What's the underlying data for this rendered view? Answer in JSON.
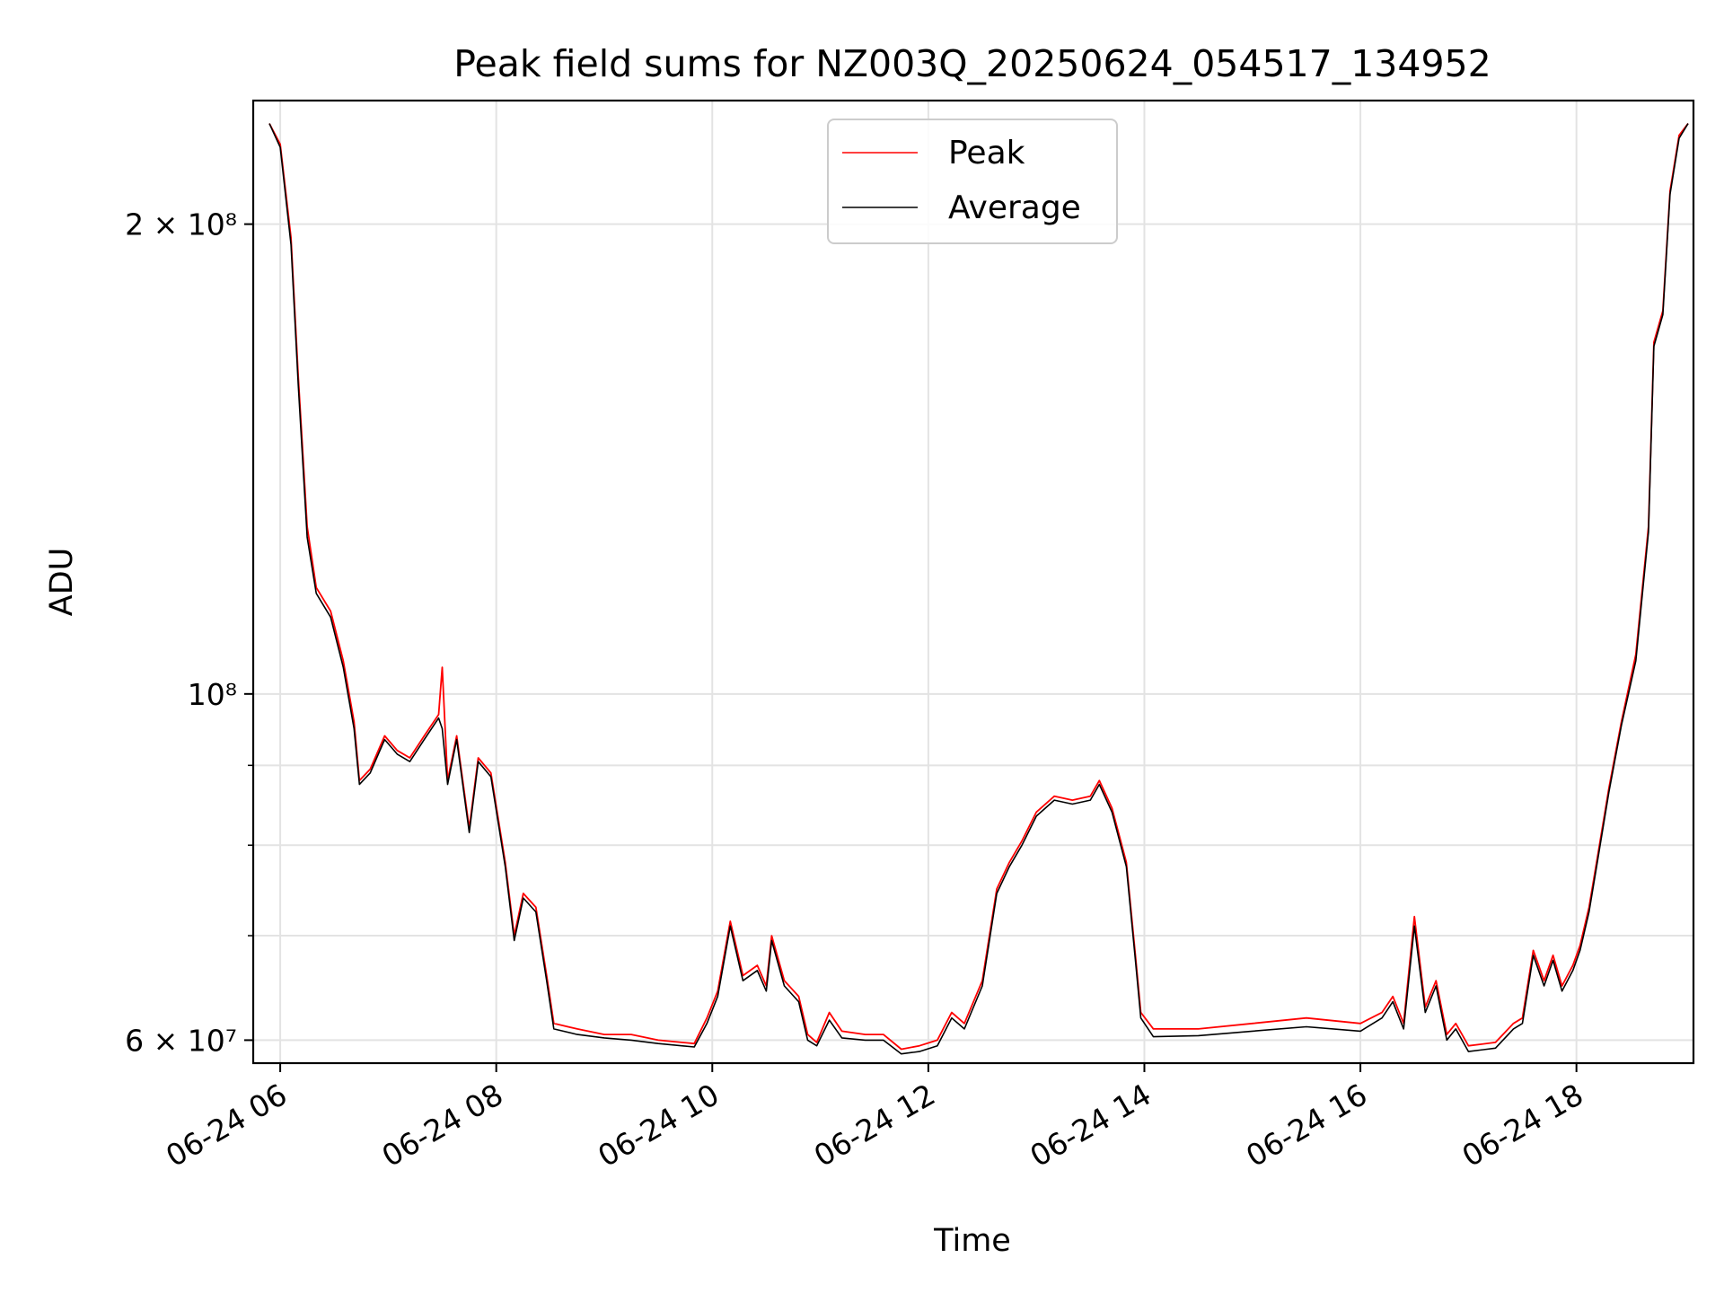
{
  "chart_data": {
    "type": "line",
    "title": "Peak field sums for NZ003Q_20250624_054517_134952",
    "xlabel": "Time",
    "ylabel": "ADU",
    "y_scale": "log",
    "ylim": [
      58000000,
      240000000
    ],
    "xlim": [
      "2025-06-24T05:45",
      "2025-06-24T19:05"
    ],
    "grid": true,
    "legend": "upper-center",
    "x_ticks": [
      {
        "t": "2025-06-24T06:00",
        "label": "06-24 06"
      },
      {
        "t": "2025-06-24T08:00",
        "label": "06-24 08"
      },
      {
        "t": "2025-06-24T10:00",
        "label": "06-24 10"
      },
      {
        "t": "2025-06-24T12:00",
        "label": "06-24 12"
      },
      {
        "t": "2025-06-24T14:00",
        "label": "06-24 14"
      },
      {
        "t": "2025-06-24T16:00",
        "label": "06-24 16"
      },
      {
        "t": "2025-06-24T18:00",
        "label": "06-24 18"
      }
    ],
    "y_major_ticks": [
      {
        "v": 60000000,
        "label": "6 × 10⁷"
      },
      {
        "v": 100000000,
        "label": "10⁸"
      },
      {
        "v": 200000000,
        "label": "2 × 10⁸"
      }
    ],
    "y_minor_ticks": [
      70000000,
      80000000,
      90000000
    ],
    "series": [
      {
        "name": "Peak",
        "color": "#ff0000",
        "points": [
          [
            "2025-06-24T05:54",
            232000000
          ],
          [
            "2025-06-24T06:00",
            225000000
          ],
          [
            "2025-06-24T06:06",
            196000000
          ],
          [
            "2025-06-24T06:10",
            160000000
          ],
          [
            "2025-06-24T06:15",
            128000000
          ],
          [
            "2025-06-24T06:20",
            117000000
          ],
          [
            "2025-06-24T06:28",
            113000000
          ],
          [
            "2025-06-24T06:35",
            105000000
          ],
          [
            "2025-06-24T06:41",
            96000000
          ],
          [
            "2025-06-24T06:44",
            88000000
          ],
          [
            "2025-06-24T06:50",
            89500000
          ],
          [
            "2025-06-24T06:58",
            94000000
          ],
          [
            "2025-06-24T07:05",
            92000000
          ],
          [
            "2025-06-24T07:12",
            91000000
          ],
          [
            "2025-06-24T07:20",
            94000000
          ],
          [
            "2025-06-24T07:28",
            97000000
          ],
          [
            "2025-06-24T07:30",
            104000000
          ],
          [
            "2025-06-24T07:33",
            88000000
          ],
          [
            "2025-06-24T07:38",
            94000000
          ],
          [
            "2025-06-24T07:45",
            82000000
          ],
          [
            "2025-06-24T07:50",
            91000000
          ],
          [
            "2025-06-24T07:57",
            89000000
          ],
          [
            "2025-06-24T08:05",
            78000000
          ],
          [
            "2025-06-24T08:10",
            70000000
          ],
          [
            "2025-06-24T08:15",
            74500000
          ],
          [
            "2025-06-24T08:22",
            73000000
          ],
          [
            "2025-06-24T08:28",
            66000000
          ],
          [
            "2025-06-24T08:32",
            61500000
          ],
          [
            "2025-06-24T08:45",
            61000000
          ],
          [
            "2025-06-24T09:00",
            60500000
          ],
          [
            "2025-06-24T09:15",
            60500000
          ],
          [
            "2025-06-24T09:30",
            60000000
          ],
          [
            "2025-06-24T09:50",
            59700000
          ],
          [
            "2025-06-24T09:57",
            62000000
          ],
          [
            "2025-06-24T10:03",
            64500000
          ],
          [
            "2025-06-24T10:10",
            71500000
          ],
          [
            "2025-06-24T10:17",
            66000000
          ],
          [
            "2025-06-24T10:25",
            67000000
          ],
          [
            "2025-06-24T10:30",
            65000000
          ],
          [
            "2025-06-24T10:33",
            70000000
          ],
          [
            "2025-06-24T10:40",
            65500000
          ],
          [
            "2025-06-24T10:48",
            64000000
          ],
          [
            "2025-06-24T10:53",
            60500000
          ],
          [
            "2025-06-24T10:58",
            59800000
          ],
          [
            "2025-06-24T11:05",
            62500000
          ],
          [
            "2025-06-24T11:12",
            60800000
          ],
          [
            "2025-06-24T11:25",
            60500000
          ],
          [
            "2025-06-24T11:35",
            60500000
          ],
          [
            "2025-06-24T11:45",
            59200000
          ],
          [
            "2025-06-24T11:55",
            59500000
          ],
          [
            "2025-06-24T12:05",
            60000000
          ],
          [
            "2025-06-24T12:13",
            62500000
          ],
          [
            "2025-06-24T12:20",
            61500000
          ],
          [
            "2025-06-24T12:30",
            65500000
          ],
          [
            "2025-06-24T12:38",
            75000000
          ],
          [
            "2025-06-24T12:45",
            78000000
          ],
          [
            "2025-06-24T12:52",
            80500000
          ],
          [
            "2025-06-24T13:00",
            84000000
          ],
          [
            "2025-06-24T13:10",
            86000000
          ],
          [
            "2025-06-24T13:20",
            85500000
          ],
          [
            "2025-06-24T13:30",
            86000000
          ],
          [
            "2025-06-24T13:35",
            88000000
          ],
          [
            "2025-06-24T13:42",
            84500000
          ],
          [
            "2025-06-24T13:50",
            78000000
          ],
          [
            "2025-06-24T13:55",
            68000000
          ],
          [
            "2025-06-24T13:58",
            62500000
          ],
          [
            "2025-06-24T14:05",
            61000000
          ],
          [
            "2025-06-24T14:30",
            61000000
          ],
          [
            "2025-06-24T15:00",
            61500000
          ],
          [
            "2025-06-24T15:30",
            62000000
          ],
          [
            "2025-06-24T16:00",
            61500000
          ],
          [
            "2025-06-24T16:12",
            62500000
          ],
          [
            "2025-06-24T16:18",
            64000000
          ],
          [
            "2025-06-24T16:24",
            61500000
          ],
          [
            "2025-06-24T16:30",
            72000000
          ],
          [
            "2025-06-24T16:36",
            63000000
          ],
          [
            "2025-06-24T16:42",
            65500000
          ],
          [
            "2025-06-24T16:48",
            60500000
          ],
          [
            "2025-06-24T16:53",
            61500000
          ],
          [
            "2025-06-24T17:00",
            59500000
          ],
          [
            "2025-06-24T17:15",
            59800000
          ],
          [
            "2025-06-24T17:25",
            61500000
          ],
          [
            "2025-06-24T17:30",
            62000000
          ],
          [
            "2025-06-24T17:36",
            68500000
          ],
          [
            "2025-06-24T17:42",
            65500000
          ],
          [
            "2025-06-24T17:47",
            68000000
          ],
          [
            "2025-06-24T17:52",
            65000000
          ],
          [
            "2025-06-24T17:58",
            67000000
          ],
          [
            "2025-06-24T18:02",
            69000000
          ],
          [
            "2025-06-24T18:07",
            73000000
          ],
          [
            "2025-06-24T18:12",
            79000000
          ],
          [
            "2025-06-24T18:18",
            87000000
          ],
          [
            "2025-06-24T18:25",
            96000000
          ],
          [
            "2025-06-24T18:33",
            106000000
          ],
          [
            "2025-06-24T18:40",
            128000000
          ],
          [
            "2025-06-24T18:43",
            168000000
          ],
          [
            "2025-06-24T18:48",
            176000000
          ],
          [
            "2025-06-24T18:52",
            210000000
          ],
          [
            "2025-06-24T18:57",
            228000000
          ],
          [
            "2025-06-24T19:02",
            232000000
          ]
        ]
      },
      {
        "name": "Average",
        "color": "#000000",
        "points": [
          [
            "2025-06-24T05:54",
            232000000
          ],
          [
            "2025-06-24T06:00",
            224000000
          ],
          [
            "2025-06-24T06:06",
            194000000
          ],
          [
            "2025-06-24T06:10",
            158000000
          ],
          [
            "2025-06-24T06:15",
            126000000
          ],
          [
            "2025-06-24T06:20",
            116000000
          ],
          [
            "2025-06-24T06:28",
            112000000
          ],
          [
            "2025-06-24T06:35",
            104000000
          ],
          [
            "2025-06-24T06:41",
            95000000
          ],
          [
            "2025-06-24T06:44",
            87500000
          ],
          [
            "2025-06-24T06:50",
            89000000
          ],
          [
            "2025-06-24T06:58",
            93500000
          ],
          [
            "2025-06-24T07:05",
            91500000
          ],
          [
            "2025-06-24T07:12",
            90500000
          ],
          [
            "2025-06-24T07:20",
            93500000
          ],
          [
            "2025-06-24T07:28",
            96500000
          ],
          [
            "2025-06-24T07:30",
            95000000
          ],
          [
            "2025-06-24T07:33",
            87500000
          ],
          [
            "2025-06-24T07:38",
            93500000
          ],
          [
            "2025-06-24T07:45",
            81500000
          ],
          [
            "2025-06-24T07:50",
            90500000
          ],
          [
            "2025-06-24T07:57",
            88500000
          ],
          [
            "2025-06-24T08:05",
            77500000
          ],
          [
            "2025-06-24T08:10",
            69500000
          ],
          [
            "2025-06-24T08:15",
            74000000
          ],
          [
            "2025-06-24T08:22",
            72500000
          ],
          [
            "2025-06-24T08:28",
            65500000
          ],
          [
            "2025-06-24T08:32",
            61000000
          ],
          [
            "2025-06-24T08:45",
            60500000
          ],
          [
            "2025-06-24T09:00",
            60200000
          ],
          [
            "2025-06-24T09:15",
            60000000
          ],
          [
            "2025-06-24T09:30",
            59700000
          ],
          [
            "2025-06-24T09:50",
            59400000
          ],
          [
            "2025-06-24T09:57",
            61500000
          ],
          [
            "2025-06-24T10:03",
            64000000
          ],
          [
            "2025-06-24T10:10",
            71000000
          ],
          [
            "2025-06-24T10:17",
            65500000
          ],
          [
            "2025-06-24T10:25",
            66500000
          ],
          [
            "2025-06-24T10:30",
            64500000
          ],
          [
            "2025-06-24T10:33",
            69500000
          ],
          [
            "2025-06-24T10:40",
            65000000
          ],
          [
            "2025-06-24T10:48",
            63500000
          ],
          [
            "2025-06-24T10:53",
            60000000
          ],
          [
            "2025-06-24T10:58",
            59500000
          ],
          [
            "2025-06-24T11:05",
            61800000
          ],
          [
            "2025-06-24T11:12",
            60200000
          ],
          [
            "2025-06-24T11:25",
            60000000
          ],
          [
            "2025-06-24T11:35",
            60000000
          ],
          [
            "2025-06-24T11:45",
            58800000
          ],
          [
            "2025-06-24T11:55",
            59000000
          ],
          [
            "2025-06-24T12:05",
            59500000
          ],
          [
            "2025-06-24T12:13",
            62000000
          ],
          [
            "2025-06-24T12:20",
            61000000
          ],
          [
            "2025-06-24T12:30",
            65000000
          ],
          [
            "2025-06-24T12:38",
            74500000
          ],
          [
            "2025-06-24T12:45",
            77500000
          ],
          [
            "2025-06-24T12:52",
            80000000
          ],
          [
            "2025-06-24T13:00",
            83500000
          ],
          [
            "2025-06-24T13:10",
            85500000
          ],
          [
            "2025-06-24T13:20",
            85000000
          ],
          [
            "2025-06-24T13:30",
            85500000
          ],
          [
            "2025-06-24T13:35",
            87500000
          ],
          [
            "2025-06-24T13:42",
            84000000
          ],
          [
            "2025-06-24T13:50",
            77500000
          ],
          [
            "2025-06-24T13:55",
            67500000
          ],
          [
            "2025-06-24T13:58",
            62000000
          ],
          [
            "2025-06-24T14:05",
            60300000
          ],
          [
            "2025-06-24T14:30",
            60400000
          ],
          [
            "2025-06-24T15:00",
            60800000
          ],
          [
            "2025-06-24T15:30",
            61200000
          ],
          [
            "2025-06-24T16:00",
            60800000
          ],
          [
            "2025-06-24T16:12",
            62000000
          ],
          [
            "2025-06-24T16:18",
            63500000
          ],
          [
            "2025-06-24T16:24",
            61000000
          ],
          [
            "2025-06-24T16:30",
            71000000
          ],
          [
            "2025-06-24T16:36",
            62500000
          ],
          [
            "2025-06-24T16:42",
            65000000
          ],
          [
            "2025-06-24T16:48",
            60000000
          ],
          [
            "2025-06-24T16:53",
            61000000
          ],
          [
            "2025-06-24T17:00",
            59000000
          ],
          [
            "2025-06-24T17:15",
            59300000
          ],
          [
            "2025-06-24T17:25",
            61000000
          ],
          [
            "2025-06-24T17:30",
            61500000
          ],
          [
            "2025-06-24T17:36",
            68000000
          ],
          [
            "2025-06-24T17:42",
            65000000
          ],
          [
            "2025-06-24T17:47",
            67500000
          ],
          [
            "2025-06-24T17:52",
            64500000
          ],
          [
            "2025-06-24T17:58",
            66500000
          ],
          [
            "2025-06-24T18:02",
            68500000
          ],
          [
            "2025-06-24T18:07",
            72500000
          ],
          [
            "2025-06-24T18:12",
            78500000
          ],
          [
            "2025-06-24T18:18",
            86500000
          ],
          [
            "2025-06-24T18:25",
            95500000
          ],
          [
            "2025-06-24T18:33",
            105000000
          ],
          [
            "2025-06-24T18:40",
            127000000
          ],
          [
            "2025-06-24T18:43",
            167000000
          ],
          [
            "2025-06-24T18:48",
            175000000
          ],
          [
            "2025-06-24T18:52",
            209000000
          ],
          [
            "2025-06-24T18:57",
            227000000
          ],
          [
            "2025-06-24T19:02",
            232000000
          ]
        ]
      }
    ]
  }
}
